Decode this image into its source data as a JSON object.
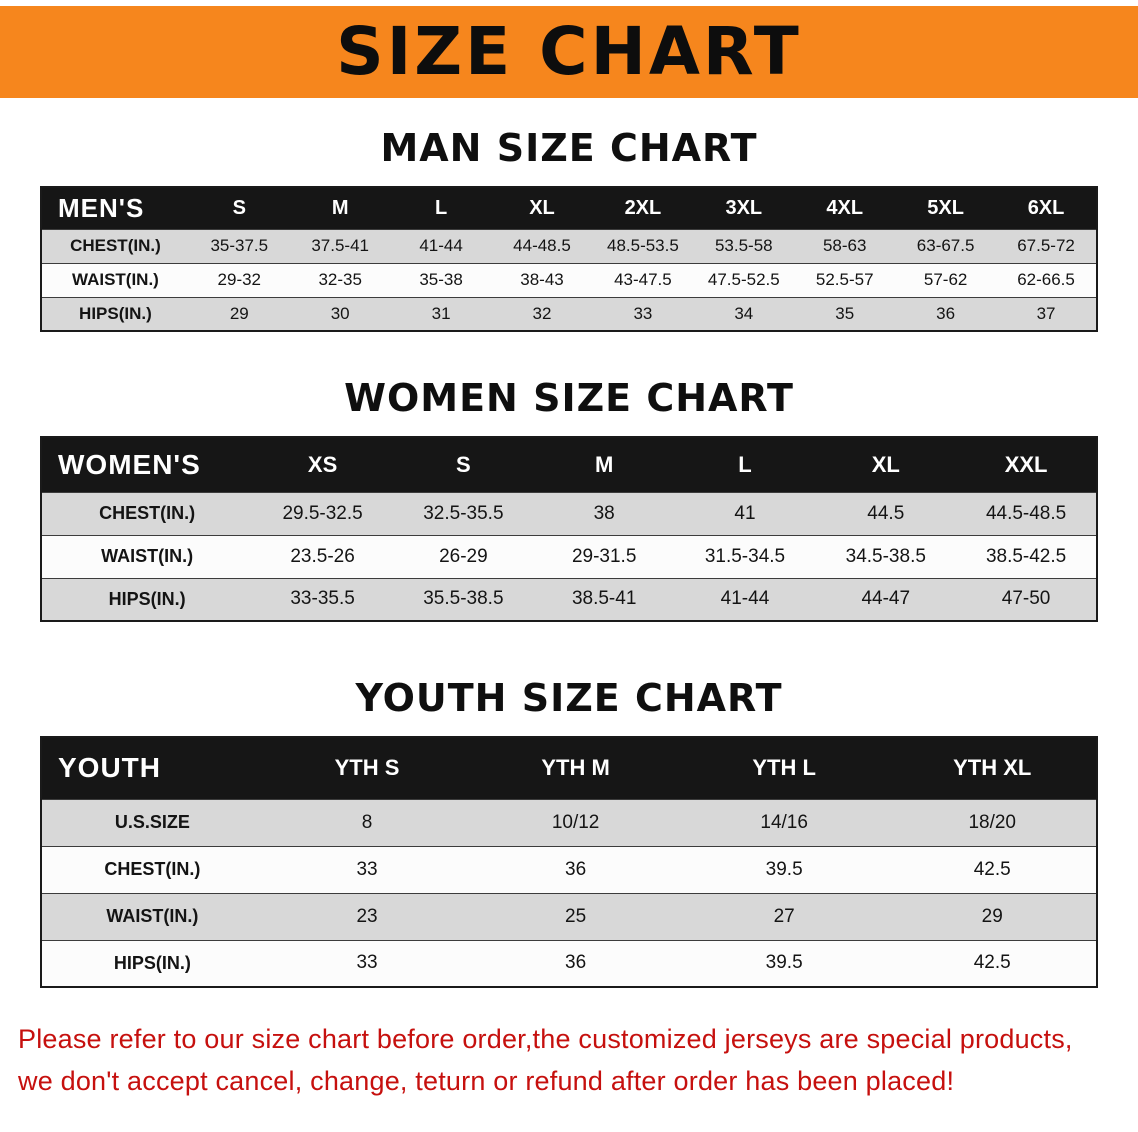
{
  "banner": {
    "title": "SIZE CHART"
  },
  "sections": [
    {
      "heading": "MAN SIZE CHART",
      "table": {
        "header": [
          "MEN'S",
          "S",
          "M",
          "L",
          "XL",
          "2XL",
          "3XL",
          "4XL",
          "5XL",
          "6XL"
        ],
        "rows": [
          [
            "CHEST(IN.)",
            "35-37.5",
            "37.5-41",
            "41-44",
            "44-48.5",
            "48.5-53.5",
            "53.5-58",
            "58-63",
            "63-67.5",
            "67.5-72"
          ],
          [
            "WAIST(IN.)",
            "29-32",
            "32-35",
            "35-38",
            "38-43",
            "43-47.5",
            "47.5-52.5",
            "52.5-57",
            "57-62",
            "62-66.5"
          ],
          [
            "HIPS(IN.)",
            "29",
            "30",
            "31",
            "32",
            "33",
            "34",
            "35",
            "36",
            "37"
          ]
        ]
      }
    },
    {
      "heading": "WOMEN SIZE CHART",
      "table": {
        "header": [
          "WOMEN'S",
          "XS",
          "S",
          "M",
          "L",
          "XL",
          "XXL"
        ],
        "rows": [
          [
            "CHEST(IN.)",
            "29.5-32.5",
            "32.5-35.5",
            "38",
            "41",
            "44.5",
            "44.5-48.5"
          ],
          [
            "WAIST(IN.)",
            "23.5-26",
            "26-29",
            "29-31.5",
            "31.5-34.5",
            "34.5-38.5",
            "38.5-42.5"
          ],
          [
            "HIPS(IN.)",
            "33-35.5",
            "35.5-38.5",
            "38.5-41",
            "41-44",
            "44-47",
            "47-50"
          ]
        ]
      }
    },
    {
      "heading": "YOUTH SIZE CHART",
      "table": {
        "header": [
          "YOUTH",
          "YTH S",
          "YTH M",
          "YTH L",
          "YTH XL"
        ],
        "rows": [
          [
            "U.S.SIZE",
            "8",
            "10/12",
            "14/16",
            "18/20"
          ],
          [
            "CHEST(IN.)",
            "33",
            "36",
            "39.5",
            "42.5"
          ],
          [
            "WAIST(IN.)",
            "23",
            "25",
            "27",
            "29"
          ],
          [
            "HIPS(IN.)",
            "33",
            "36",
            "39.5",
            "42.5"
          ]
        ]
      }
    }
  ],
  "disclaimer": {
    "line1": "Please refer to our size chart before order,the customized jerseys are special products,",
    "line2": "we don't accept cancel, change, teturn or refund after order has been placed!"
  },
  "colors": {
    "banner_orange": "#f6861d",
    "table_header_black": "#161616",
    "row_gray": "#d8d8d8",
    "row_white": "#fcfcfc",
    "disclaimer_red": "#c6100e"
  }
}
